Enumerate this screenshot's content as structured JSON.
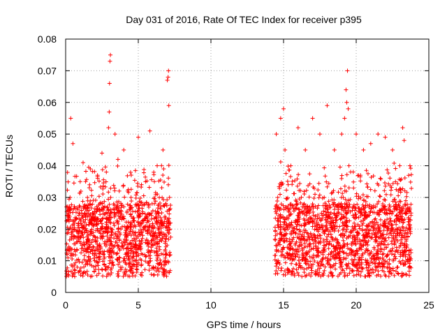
{
  "chart_data": {
    "type": "scatter",
    "title": "Day 031 of 2016, Rate Of TEC Index for receiver p395",
    "xlabel": "GPS time / hours",
    "ylabel": "ROTI / TECUs",
    "xlim": [
      0,
      25
    ],
    "ylim": [
      0,
      0.08
    ],
    "grid": true,
    "marker": "+",
    "x_ticks": [
      0,
      5,
      10,
      15,
      20,
      25
    ],
    "x_tick_labels": [
      "0",
      "5",
      "10",
      "15",
      "20",
      "25"
    ],
    "y_ticks": [
      0,
      0.01,
      0.02,
      0.03,
      0.04,
      0.05,
      0.06,
      0.07,
      0.08
    ],
    "y_tick_labels": [
      "0",
      "0.01",
      "0.02",
      "0.03",
      "0.04",
      "0.05",
      "0.06",
      "0.07",
      "0.08"
    ],
    "data_segments": [
      {
        "x_start": 0.05,
        "x_end": 7.25
      },
      {
        "x_start": 14.4,
        "x_end": 23.8
      }
    ],
    "series": [
      {
        "name": "ROTI",
        "color": "#ff0000",
        "x": [
          0.1,
          0.3,
          0.35,
          0.5,
          0.6,
          0.8,
          1.0,
          1.2,
          1.3,
          1.5,
          1.7,
          1.9,
          2.0,
          2.2,
          2.5,
          2.8,
          2.95,
          3.0,
          3.02,
          3.05,
          3.08,
          3.1,
          3.2,
          3.4,
          3.6,
          3.8,
          4.0,
          4.2,
          4.5,
          4.8,
          5.0,
          5.3,
          5.5,
          5.8,
          6.0,
          6.3,
          6.5,
          6.7,
          6.9,
          7.0,
          7.05,
          7.08,
          7.1,
          7.15,
          14.5,
          14.6,
          14.8,
          15.0,
          15.1,
          15.3,
          15.5,
          15.8,
          16.0,
          16.3,
          16.5,
          16.8,
          17.0,
          17.3,
          17.5,
          17.8,
          18.0,
          18.3,
          18.5,
          18.8,
          19.0,
          19.2,
          19.3,
          19.35,
          19.4,
          19.45,
          19.5,
          19.7,
          20.0,
          20.3,
          20.5,
          20.8,
          21.0,
          21.3,
          21.5,
          21.8,
          22.0,
          22.3,
          22.5,
          22.8,
          23.0,
          23.2,
          23.3,
          23.5,
          23.7
        ],
        "y": [
          0.012,
          0.03,
          0.055,
          0.047,
          0.02,
          0.008,
          0.035,
          0.041,
          0.015,
          0.03,
          0.039,
          0.025,
          0.01,
          0.036,
          0.044,
          0.02,
          0.052,
          0.057,
          0.066,
          0.073,
          0.075,
          0.03,
          0.015,
          0.05,
          0.042,
          0.02,
          0.045,
          0.012,
          0.03,
          0.01,
          0.049,
          0.025,
          0.035,
          0.051,
          0.015,
          0.04,
          0.022,
          0.045,
          0.012,
          0.067,
          0.068,
          0.07,
          0.059,
          0.03,
          0.05,
          0.03,
          0.055,
          0.058,
          0.045,
          0.02,
          0.04,
          0.015,
          0.052,
          0.025,
          0.045,
          0.015,
          0.055,
          0.02,
          0.05,
          0.03,
          0.059,
          0.015,
          0.045,
          0.025,
          0.05,
          0.055,
          0.064,
          0.06,
          0.07,
          0.058,
          0.04,
          0.015,
          0.05,
          0.025,
          0.045,
          0.015,
          0.047,
          0.02,
          0.05,
          0.012,
          0.049,
          0.025,
          0.045,
          0.02,
          0.04,
          0.052,
          0.048,
          0.015,
          0.04
        ]
      }
    ]
  }
}
